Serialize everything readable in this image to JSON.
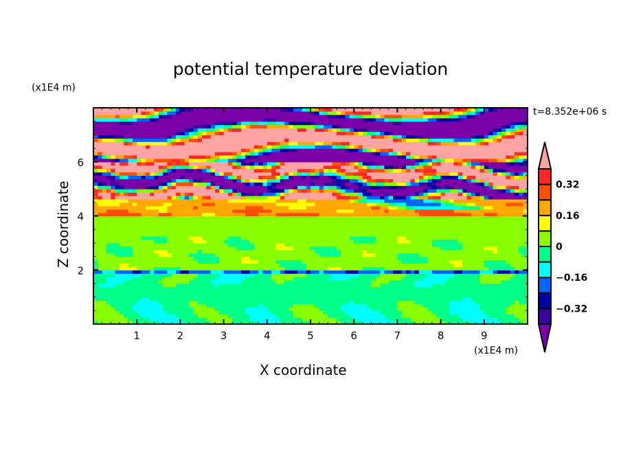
{
  "chart_data": {
    "type": "heatmap",
    "title": "potential temperature deviation",
    "xlabel": "X coordinate",
    "ylabel": "Z coordinate",
    "x_unit_label": "(x1E4 m)",
    "y_unit_label": "(x1E4 m)",
    "time_label": "t=8.352e+06 s",
    "xlim": [
      0,
      10
    ],
    "ylim": [
      0,
      8
    ],
    "x_ticks": [
      1,
      2,
      3,
      4,
      5,
      6,
      7,
      8,
      9
    ],
    "x_tick_labels": [
      "1",
      "2",
      "3",
      "4",
      "5",
      "6",
      "7",
      "8",
      "9"
    ],
    "y_ticks": [
      2,
      4,
      6
    ],
    "y_tick_labels": [
      "2",
      "4",
      "6"
    ],
    "colorbar": {
      "levels": [
        -0.4,
        -0.32,
        -0.24,
        -0.16,
        -0.08,
        0,
        0.08,
        0.16,
        0.24,
        0.32,
        0.4
      ],
      "colors": [
        "#7a00a8",
        "#3a00a0",
        "#0000a0",
        "#0064ff",
        "#00ffff",
        "#00ff88",
        "#88ff00",
        "#ffff00",
        "#ffa800",
        "#ff5000",
        "#ff2828",
        "#ffa4a4"
      ],
      "tick_values": [
        0.32,
        0.16,
        0,
        -0.16,
        -0.32
      ],
      "tick_labels": [
        "0.32",
        "0.16",
        "0",
        "−0.16",
        "−0.32"
      ],
      "extend": "both"
    },
    "description_bands": [
      {
        "z_range": [
          0,
          1.9
        ],
        "value_range": [
          -0.08,
          0.08
        ]
      },
      {
        "z_range": [
          1.9,
          2.0
        ],
        "value_range": [
          -0.4,
          -0.16
        ]
      },
      {
        "z_range": [
          2.0,
          4.0
        ],
        "value_range": [
          -0.08,
          0.08
        ]
      },
      {
        "z_range": [
          4.0,
          4.6
        ],
        "value_range": [
          0.08,
          0.32
        ]
      },
      {
        "z_range": [
          4.6,
          6.0
        ],
        "value_range": [
          -0.5,
          0.5
        ]
      },
      {
        "z_range": [
          6.0,
          8.0
        ],
        "value_range": [
          -0.5,
          0.5
        ]
      }
    ]
  }
}
